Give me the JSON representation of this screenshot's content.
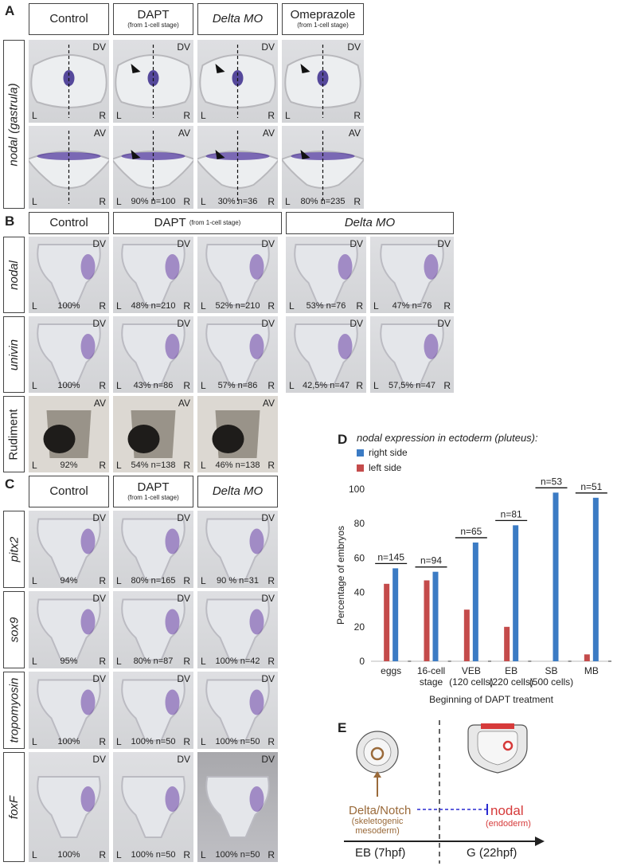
{
  "panels": {
    "A": "A",
    "B": "B",
    "C": "C",
    "D": "D",
    "E": "E"
  },
  "A": {
    "headers": [
      {
        "main": "Control",
        "sub": ""
      },
      {
        "main": "DAPT",
        "sub": "(from 1-cell stage)"
      },
      {
        "main": "Delta MO",
        "sub": ""
      },
      {
        "main": "Omeprazole",
        "sub": "(from 1-cell stage)"
      }
    ],
    "row_label": "nodal (gastrula)",
    "row1_view": "DV",
    "row2_view": "AV",
    "captions": [
      "",
      "90% n=100",
      "30% n=36",
      "80% n=235"
    ]
  },
  "B": {
    "headers": [
      {
        "main": "Control",
        "sub": ""
      },
      {
        "main": "DAPT",
        "sub": "(from 1-cell stage)"
      },
      {
        "main": "Delta MO",
        "sub": ""
      }
    ],
    "rows": [
      {
        "label": "nodal",
        "view": "DV",
        "captions": [
          "100%",
          "48% n=210",
          "52% n=210",
          "53% n=76",
          "47% n=76"
        ]
      },
      {
        "label": "univin",
        "view": "DV",
        "captions": [
          "100%",
          "43% n=86",
          "57% n=86",
          "42,5% n=47",
          "57,5% n=47"
        ]
      },
      {
        "label": "Rudiment",
        "view": "AV",
        "captions": [
          "92%",
          "54% n=138",
          "46% n=138"
        ]
      }
    ]
  },
  "C": {
    "headers": [
      {
        "main": "Control",
        "sub": ""
      },
      {
        "main": "DAPT",
        "sub": "(from 1-cell stage)"
      },
      {
        "main": "Delta MO",
        "sub": ""
      }
    ],
    "rows": [
      {
        "label": "pitx2",
        "view": "DV",
        "captions": [
          "94%",
          "80% n=165",
          "90 % n=31"
        ]
      },
      {
        "label": "sox9",
        "view": "DV",
        "captions": [
          "95%",
          "80% n=87",
          "100% n=42"
        ]
      },
      {
        "label": "tropomyosin",
        "view": "DV",
        "captions": [
          "100%",
          "100% n=50",
          "100% n=50"
        ]
      },
      {
        "label": "foxF",
        "view": "DV",
        "captions": [
          "100%",
          "100% n=50",
          "100% n=50"
        ]
      }
    ]
  },
  "side": {
    "left": "L",
    "right": "R"
  },
  "chart_data": {
    "type": "bar",
    "title": "nodal expression in ectoderm (pluteus):",
    "ylabel": "Percentage of embryos",
    "xlabel": "Beginning of DAPT treatment",
    "ylim": [
      0,
      100
    ],
    "yticks": [
      "0",
      "20",
      "40",
      "60",
      "80",
      "100"
    ],
    "categories": [
      {
        "line1": "eggs",
        "line2": ""
      },
      {
        "line1": "16-cell",
        "line2": "stage"
      },
      {
        "line1": "VEB",
        "line2": "(120 cells)"
      },
      {
        "line1": "EB",
        "line2": "(220 cells)"
      },
      {
        "line1": "SB",
        "line2": "(500 cells)"
      },
      {
        "line1": "MB",
        "line2": ""
      }
    ],
    "counts": [
      "n=145",
      "n=94",
      "n=65",
      "n=81",
      "n=53",
      "n=51"
    ],
    "series": [
      {
        "name": "right side",
        "color": "#3b7bc4",
        "values": [
          54,
          52,
          69,
          79,
          98,
          95
        ]
      },
      {
        "name": "left side",
        "color": "#c44b4b",
        "values": [
          45,
          47,
          30,
          20,
          0,
          4
        ]
      }
    ],
    "grid": false,
    "legend": "top-left"
  },
  "E": {
    "left_label": "Delta/Notch",
    "left_sub": "(skeletogenic mesoderm)",
    "right_label": "nodal",
    "right_sub": "(endoderm)",
    "stage_left": "EB (7hpf)",
    "stage_right": "G (22hpf)",
    "colors": {
      "delta": "#9a6a3a",
      "nodal": "#d63a3a",
      "inhibit": "#2a2ad0"
    }
  }
}
